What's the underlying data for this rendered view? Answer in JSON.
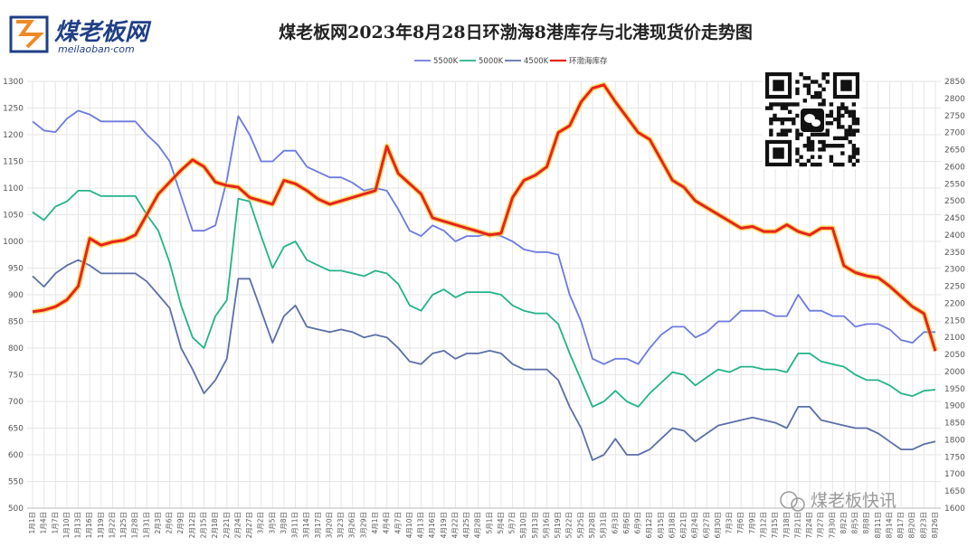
{
  "header": {
    "logo_text": "煤老板网",
    "logo_url": "meilaoban·com",
    "title": "煤老板网2023年8月28日环渤海8港库存与北港现货价走势图"
  },
  "watermark": "煤老板快讯",
  "colors": {
    "s5500": "#6c7ae0",
    "s5000": "#23b388",
    "s4500": "#5b6fa8",
    "inventory": "#e8231a",
    "grid": "#e6e6e6",
    "logo": "#1f3f86",
    "logo_accent": "#f08a24"
  },
  "chart_data": {
    "type": "line",
    "title": "煤老板网2023年8月28日环渤海8港库存与北港现货价走势图",
    "legend_position": "top",
    "grid": true,
    "y_left": {
      "min": 500,
      "max": 1300,
      "step": 50
    },
    "y_right": {
      "min": 1600,
      "max": 2850,
      "step": 50
    },
    "x_labels": [
      "1月1日",
      "1月4日",
      "1月7日",
      "1月10日",
      "1月13日",
      "1月16日",
      "1月19日",
      "1月22日",
      "1月25日",
      "1月28日",
      "1月31日",
      "2月3日",
      "2月6日",
      "2月9日",
      "2月12日",
      "2月15日",
      "2月18日",
      "2月21日",
      "2月24日",
      "2月27日",
      "3月2日",
      "3月5日",
      "3月8日",
      "3月11日",
      "3月14日",
      "3月17日",
      "3月20日",
      "3月23日",
      "3月26日",
      "3月29日",
      "4月1日",
      "4月4日",
      "4月7日",
      "4月10日",
      "4月13日",
      "4月16日",
      "4月19日",
      "4月22日",
      "4月25日",
      "4月28日",
      "5月1日",
      "5月4日",
      "5月7日",
      "5月10日",
      "5月13日",
      "5月16日",
      "5月19日",
      "5月22日",
      "5月25日",
      "5月28日",
      "5月31日",
      "6月3日",
      "6月6日",
      "6月9日",
      "6月12日",
      "6月15日",
      "6月18日",
      "6月21日",
      "6月24日",
      "6月27日",
      "6月30日",
      "7月3日",
      "7月6日",
      "7月9日",
      "7月12日",
      "7月15日",
      "7月18日",
      "7月21日",
      "7月24日",
      "7月27日",
      "7月30日",
      "8月2日",
      "8月5日",
      "8月8日",
      "8月11日",
      "8月14日",
      "8月17日",
      "8月20日",
      "8月23日",
      "8月26日"
    ],
    "series": [
      {
        "name": "5500K",
        "axis": "left",
        "values": [
          1225,
          1208,
          1205,
          1230,
          1245,
          1238,
          1225,
          1225,
          1225,
          1225,
          1200,
          1180,
          1150,
          1085,
          1020,
          1020,
          1030,
          1115,
          1235,
          1200,
          1150,
          1150,
          1170,
          1170,
          1140,
          1130,
          1120,
          1120,
          1110,
          1095,
          1100,
          1095,
          1060,
          1020,
          1010,
          1030,
          1020,
          1000,
          1010,
          1010,
          1015,
          1010,
          1000,
          985,
          980,
          980,
          975,
          900,
          850,
          780,
          770,
          780,
          780,
          770,
          800,
          825,
          840,
          840,
          820,
          830,
          850,
          850,
          870,
          870,
          870,
          860,
          860,
          900,
          870,
          870,
          860,
          860,
          840,
          845,
          845,
          835,
          815,
          810,
          830,
          830
        ]
      },
      {
        "name": "5000K",
        "axis": "left",
        "values": [
          1055,
          1040,
          1065,
          1075,
          1095,
          1095,
          1085,
          1085,
          1085,
          1085,
          1050,
          1020,
          960,
          880,
          820,
          800,
          860,
          890,
          1080,
          1075,
          1010,
          950,
          990,
          1000,
          965,
          955,
          945,
          945,
          940,
          935,
          945,
          940,
          920,
          880,
          870,
          900,
          910,
          895,
          905,
          905,
          905,
          900,
          880,
          870,
          865,
          865,
          845,
          790,
          740,
          690,
          700,
          720,
          700,
          690,
          715,
          735,
          755,
          750,
          730,
          745,
          760,
          755,
          765,
          765,
          760,
          760,
          755,
          790,
          790,
          775,
          770,
          765,
          750,
          740,
          740,
          730,
          715,
          710,
          720,
          722
        ]
      },
      {
        "name": "4500K",
        "axis": "left",
        "values": [
          935,
          915,
          940,
          955,
          965,
          955,
          940,
          940,
          940,
          940,
          925,
          900,
          875,
          800,
          760,
          715,
          740,
          780,
          930,
          930,
          870,
          810,
          860,
          880,
          840,
          835,
          830,
          835,
          830,
          820,
          825,
          820,
          800,
          775,
          770,
          790,
          795,
          780,
          790,
          790,
          795,
          790,
          770,
          760,
          760,
          760,
          740,
          690,
          650,
          590,
          600,
          630,
          600,
          600,
          610,
          630,
          650,
          645,
          625,
          640,
          655,
          660,
          665,
          670,
          665,
          660,
          650,
          690,
          690,
          665,
          660,
          655,
          650,
          650,
          640,
          625,
          610,
          610,
          620,
          625
        ]
      },
      {
        "name": "环渤海库存",
        "axis": "right",
        "values": [
          2175,
          2180,
          2190,
          2210,
          2250,
          2390,
          2370,
          2380,
          2385,
          2400,
          2460,
          2520,
          2555,
          2590,
          2620,
          2600,
          2555,
          2545,
          2540,
          2510,
          2500,
          2490,
          2560,
          2550,
          2530,
          2505,
          2490,
          2500,
          2510,
          2520,
          2530,
          2660,
          2580,
          2550,
          2520,
          2450,
          2440,
          2430,
          2420,
          2410,
          2400,
          2405,
          2510,
          2560,
          2575,
          2600,
          2700,
          2720,
          2790,
          2830,
          2840,
          2790,
          2745,
          2700,
          2680,
          2620,
          2560,
          2540,
          2500,
          2480,
          2460,
          2440,
          2420,
          2425,
          2410,
          2410,
          2430,
          2410,
          2400,
          2420,
          2420,
          2310,
          2290,
          2280,
          2275,
          2250,
          2220,
          2190,
          2170,
          2060
        ]
      }
    ]
  }
}
